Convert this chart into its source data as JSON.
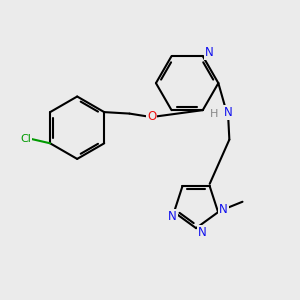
{
  "bg_color": "#ebebeb",
  "bond_color": "#000000",
  "N_color": "#1010ee",
  "O_color": "#ee1010",
  "Cl_color": "#009900",
  "lw": 1.5,
  "figsize": [
    3.0,
    3.0
  ],
  "dpi": 100,
  "xlim": [
    0,
    10
  ],
  "ylim": [
    0,
    10
  ]
}
